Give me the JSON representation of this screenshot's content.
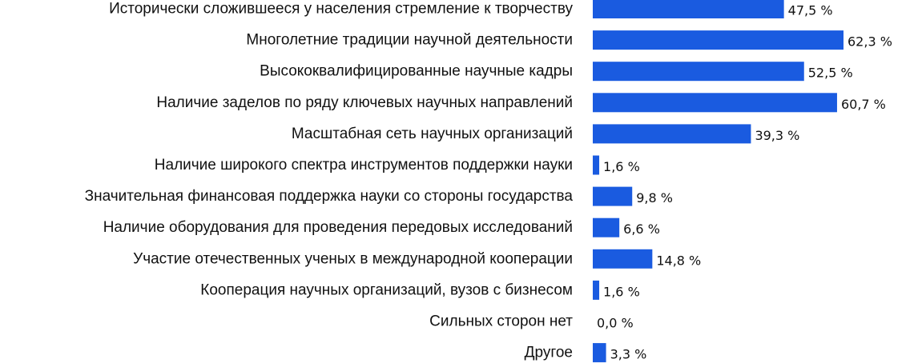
{
  "chart_data": {
    "type": "bar",
    "orientation": "horizontal",
    "categories": [
      "Исторически сложившееся у населения стремление к творчеству",
      "Многолетние традиции научной деятельности",
      "Высококвалифицированные научные кадры",
      "Наличие заделов по ряду ключевых научных направлений",
      "Масштабная сеть научных организаций",
      "Наличие широкого спектра инструментов поддержки науки",
      "Значительная финансовая поддержка науки со стороны государства",
      "Наличие оборудования для проведения передовых исследований",
      "Участие отечественных ученых в международной кооперации",
      "Кооперация  научных организаций, вузов с  бизнесом",
      "Сильных сторон нет",
      "Другое"
    ],
    "values": [
      47.5,
      62.3,
      52.5,
      60.7,
      39.3,
      1.6,
      9.8,
      6.6,
      14.8,
      1.6,
      0.0,
      3.3
    ],
    "value_labels": [
      "47,5 %",
      "62,3 %",
      "52,5 %",
      "60,7 %",
      "39,3 %",
      "1,6 %",
      "9,8 %",
      "6,6 %",
      "14,8 %",
      "1,6 %",
      "0,0 %",
      "3,3 %"
    ],
    "xlim": [
      0,
      62.3
    ],
    "bar_color": "#1a5be0",
    "title": "",
    "xlabel": "",
    "ylabel": "",
    "grid": false,
    "legend": "none"
  }
}
